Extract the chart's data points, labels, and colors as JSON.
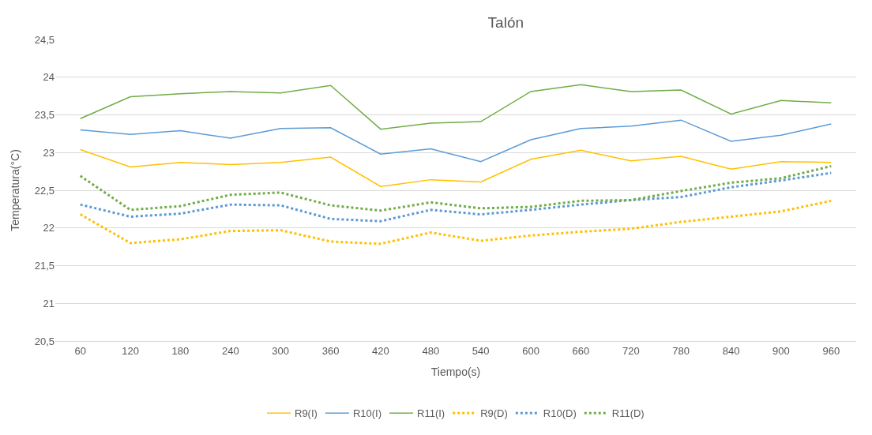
{
  "chart_data": {
    "type": "line",
    "title": "Talón",
    "xlabel": "Tiempo(s)",
    "ylabel": "Temperatura(°C)",
    "categories": [
      "60",
      "120",
      "180",
      "240",
      "300",
      "360",
      "420",
      "480",
      "540",
      "600",
      "660",
      "720",
      "780",
      "840",
      "900",
      "960"
    ],
    "ylim": [
      20.5,
      24.5
    ],
    "yticks": [
      {
        "value": 20.5,
        "label": "20,5"
      },
      {
        "value": 21,
        "label": "21"
      },
      {
        "value": 21.5,
        "label": "21,5"
      },
      {
        "value": 22,
        "label": "22"
      },
      {
        "value": 22.5,
        "label": "22,5"
      },
      {
        "value": 23,
        "label": "23"
      },
      {
        "value": 23.5,
        "label": "23,5"
      },
      {
        "value": 24,
        "label": "24"
      },
      {
        "value": 24.5,
        "label": "24,5"
      }
    ],
    "grid": "y",
    "legend": "bottom",
    "marker": "none",
    "series": [
      {
        "name": "R9(I)",
        "color": "#ffc000",
        "line_style": "solid",
        "values": [
          23.04,
          22.81,
          22.87,
          22.84,
          22.87,
          22.94,
          22.55,
          22.64,
          22.61,
          22.91,
          23.03,
          22.89,
          22.95,
          22.78,
          22.88,
          22.87
        ]
      },
      {
        "name": "R10(I)",
        "color": "#5b9bd5",
        "line_style": "solid",
        "values": [
          23.3,
          23.24,
          23.29,
          23.19,
          23.32,
          23.33,
          22.98,
          23.05,
          22.88,
          23.17,
          23.32,
          23.35,
          23.43,
          23.15,
          23.23,
          23.38
        ]
      },
      {
        "name": "R11(I)",
        "color": "#70ad47",
        "line_style": "solid",
        "values": [
          23.45,
          23.74,
          23.78,
          23.81,
          23.79,
          23.89,
          23.31,
          23.39,
          23.41,
          23.81,
          23.9,
          23.81,
          23.83,
          23.51,
          23.69,
          23.66
        ]
      },
      {
        "name": "R9(D)",
        "color": "#ffc000",
        "line_style": "dotted",
        "values": [
          22.18,
          21.8,
          21.85,
          21.96,
          21.97,
          21.82,
          21.79,
          21.94,
          21.83,
          21.9,
          21.95,
          21.99,
          22.08,
          22.15,
          22.22,
          22.36
        ]
      },
      {
        "name": "R10(D)",
        "color": "#5b9bd5",
        "line_style": "dotted",
        "values": [
          22.31,
          22.15,
          22.19,
          22.31,
          22.3,
          22.12,
          22.09,
          22.24,
          22.18,
          22.24,
          22.31,
          22.37,
          22.41,
          22.54,
          22.63,
          22.73
        ]
      },
      {
        "name": "R11(D)",
        "color": "#70ad47",
        "line_style": "dotted",
        "values": [
          22.69,
          22.24,
          22.29,
          22.44,
          22.47,
          22.3,
          22.23,
          22.34,
          22.26,
          22.28,
          22.36,
          22.37,
          22.49,
          22.6,
          22.66,
          22.82
        ]
      }
    ]
  }
}
